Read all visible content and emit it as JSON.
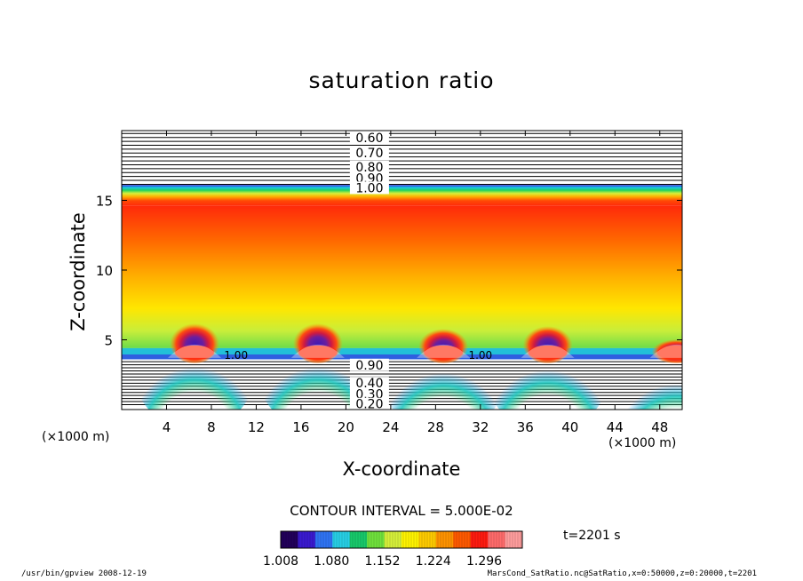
{
  "chart_data": {
    "type": "heatmap",
    "title": "saturation ratio",
    "xlabel": "X-coordinate",
    "ylabel": "Z-coordinate",
    "x_unit_label": "(×1000 m)",
    "xlim": [
      0,
      50
    ],
    "ylim": [
      0,
      20
    ],
    "x_ticks": [
      4,
      8,
      12,
      16,
      20,
      24,
      28,
      32,
      36,
      40,
      44,
      48
    ],
    "y_ticks": [
      5,
      10,
      15
    ],
    "contour_interval_text": "CONTOUR INTERVAL = 5.000E-02",
    "upper_contour_labels": [
      "0.60",
      "0.70",
      "0.80",
      "0.90",
      "1.00"
    ],
    "lower_contour_labels": [
      "0.90",
      "0.40",
      "0.30",
      "0.20"
    ],
    "inline_contour_labels": [
      "1.00",
      "1.00"
    ],
    "colorbar": {
      "tick_labels": [
        "1.008",
        "1.080",
        "1.152",
        "1.224",
        "1.296"
      ],
      "range": [
        1.008,
        1.35
      ],
      "colors": [
        "#22005a",
        "#3a1bd0",
        "#2f74f5",
        "#27cfe6",
        "#18c96b",
        "#70e23c",
        "#d6f03a",
        "#fff400",
        "#ffcc00",
        "#ff9300",
        "#ff5a00",
        "#ff1b10",
        "#ff6b6b",
        "#ff9d9d"
      ]
    },
    "features": [
      {
        "type": "cloud_column",
        "x": 6.5,
        "top_z": 6.2
      },
      {
        "type": "cloud_column",
        "x": 17.5,
        "top_z": 6.2
      },
      {
        "type": "cloud_column",
        "x": 28.7,
        "top_z": 5.8
      },
      {
        "type": "cloud_column",
        "x": 38.0,
        "top_z": 6.0
      },
      {
        "type": "cloud_column",
        "x": 49.5,
        "top_z": 5.0
      }
    ],
    "time": "t=2201 s"
  },
  "footer": {
    "left": "/usr/bin/gpview   2008-12-19",
    "right": "MarsCond_SatRatio.nc@SatRatio,x=0:50000,z=0:20000,t=2201"
  }
}
